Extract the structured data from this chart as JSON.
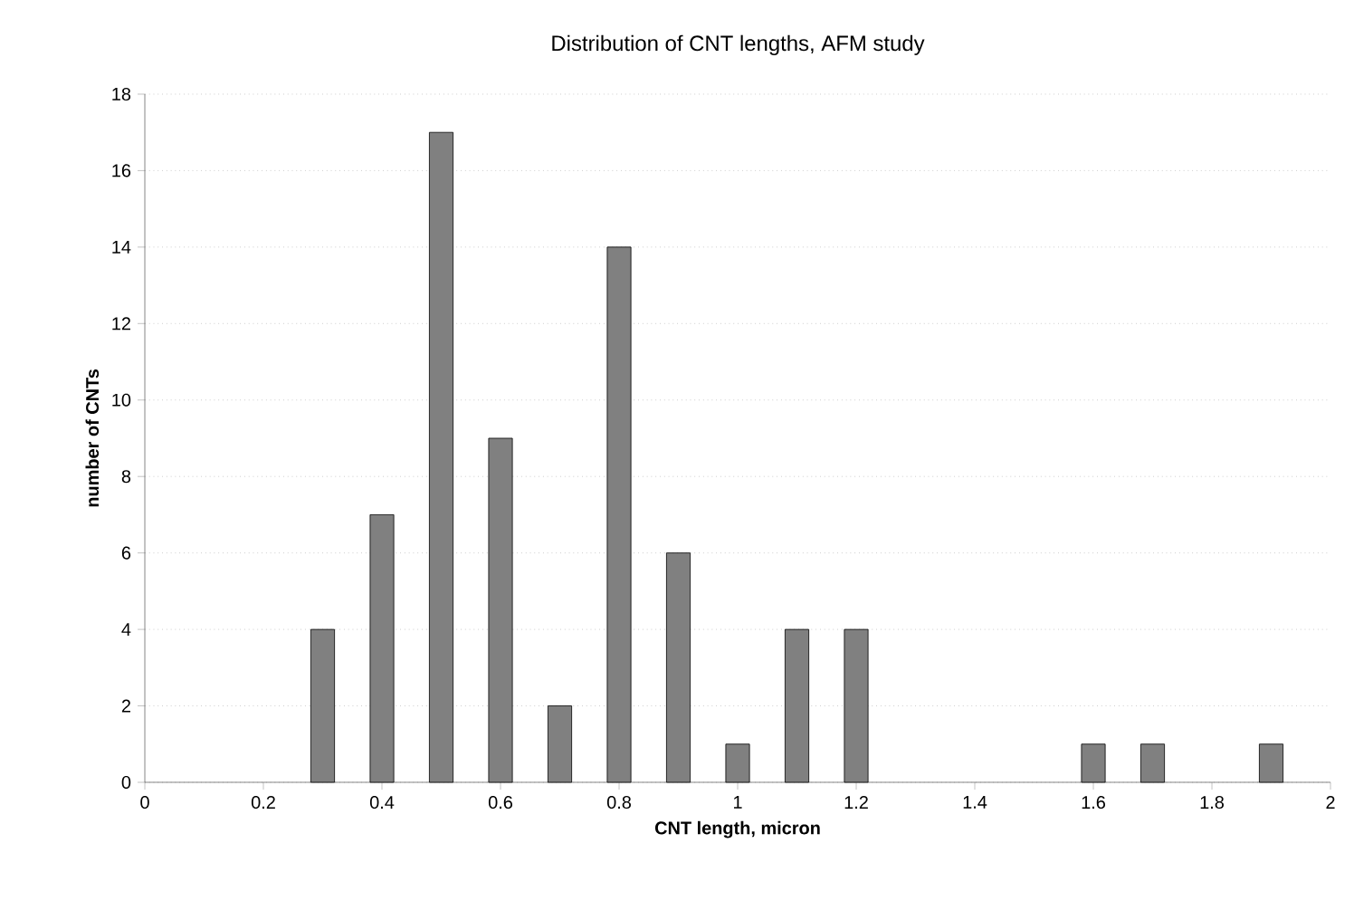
{
  "chart_data": {
    "type": "bar",
    "title": "Distribution of CNT lengths, AFM study",
    "xlabel": "CNT length, micron",
    "ylabel": "number of CNTs",
    "x": [
      0.3,
      0.4,
      0.5,
      0.6,
      0.7,
      0.8,
      0.9,
      1.0,
      1.1,
      1.2,
      1.6,
      1.7,
      1.9
    ],
    "values": [
      4,
      7,
      17,
      9,
      2,
      14,
      6,
      1,
      4,
      4,
      1,
      1,
      1
    ],
    "color": "#808080",
    "xlim": [
      0,
      2
    ],
    "xticks": [
      0,
      0.2,
      0.4,
      0.6,
      0.8,
      1,
      1.2,
      1.4,
      1.6,
      1.8,
      2
    ],
    "ylim": [
      0,
      18
    ],
    "yticks": [
      0,
      2,
      4,
      6,
      8,
      10,
      12,
      14,
      16,
      18
    ],
    "grid": "y"
  }
}
